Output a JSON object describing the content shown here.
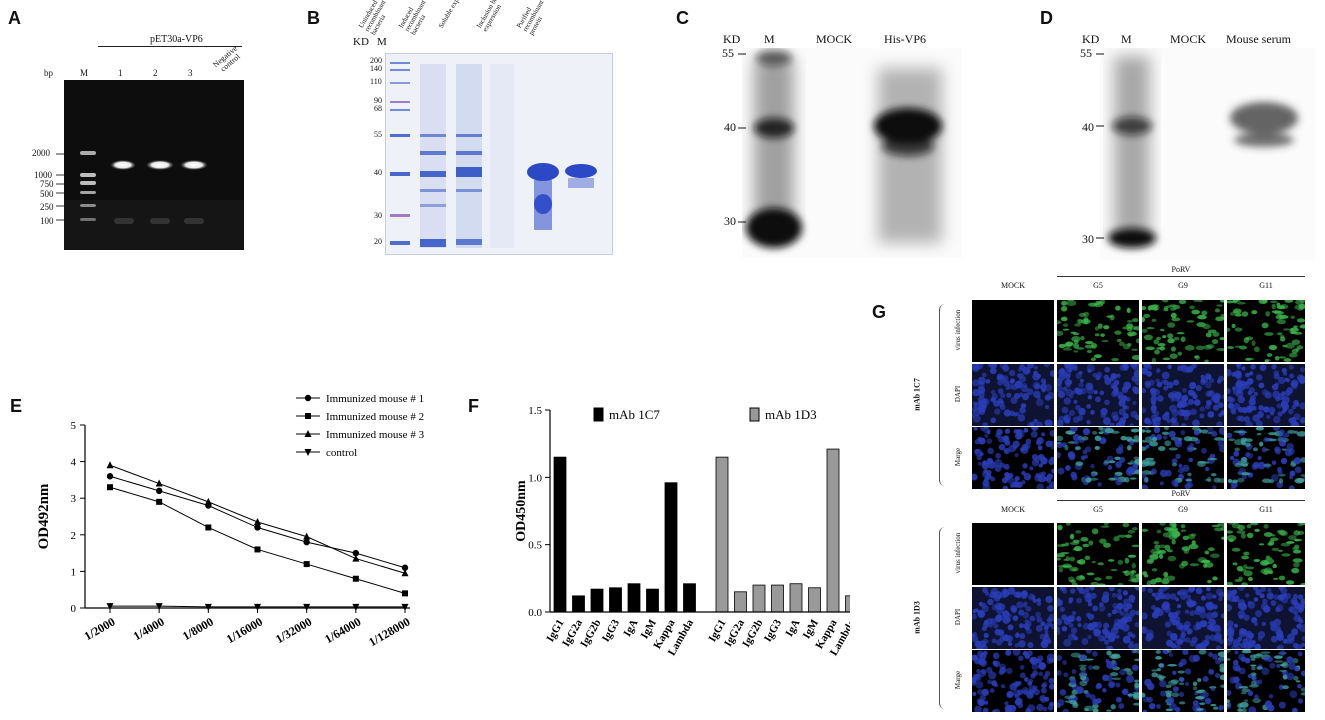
{
  "panels": {
    "A": "A",
    "B": "B",
    "C": "C",
    "D": "D",
    "E": "E",
    "F": "F",
    "G": "G"
  },
  "panelA": {
    "header": "pET30a-VP6",
    "unit": "bp",
    "lanes": [
      "M",
      "1",
      "2",
      "3",
      "Negative control"
    ],
    "markers": [
      "2000",
      "1000",
      "750",
      "500",
      "250",
      "100"
    ]
  },
  "panelB": {
    "unit": "KD",
    "marker_lane": "M",
    "lanes": [
      "Uninduced recombinant bacteria",
      "Induced recombinant bacteria",
      "Soluble expression",
      "Inclusion body expression",
      "Purified recombinant protein"
    ],
    "markers": [
      "200",
      "140",
      "110",
      "90",
      "68",
      "55",
      "40",
      "30",
      "20"
    ]
  },
  "panelC": {
    "unit": "KD",
    "lanes": [
      "M",
      "MOCK",
      "His-VP6"
    ],
    "markers": [
      "55",
      "40",
      "30"
    ]
  },
  "panelD": {
    "unit": "KD",
    "lanes": [
      "M",
      "MOCK",
      "Mouse serum"
    ],
    "markers": [
      "55",
      "40",
      "30"
    ]
  },
  "panelE": {
    "ylabel": "OD492nm",
    "legend": [
      "Immunized mouse # 1",
      "Immunized mouse # 2",
      "Immunized mouse # 3",
      "control"
    ]
  },
  "panelF": {
    "ylabel": "OD450nm",
    "legend": [
      "mAb 1C7",
      "mAb 1D3"
    ]
  },
  "panelG": {
    "group_header": "PoRV",
    "columns": [
      "MOCK",
      "G5",
      "G9",
      "G11"
    ],
    "rows": [
      "virus infection",
      "DAPI",
      "Marge"
    ],
    "antibodies": [
      "mAb 1C7",
      "mAb 1D3"
    ]
  },
  "colors": {
    "dapi": "#1a237e",
    "gfp": "#2e7d32",
    "coomassie": "#1f3fbf",
    "bar_1c7": "#000000",
    "bar_1d3": "#999999"
  },
  "chart_data": [
    {
      "type": "line",
      "title": "",
      "xlabel": "",
      "ylabel": "OD492nm",
      "categories": [
        "1/2000",
        "1/4000",
        "1/8000",
        "1/16000",
        "1/32000",
        "1/64000",
        "1/128000"
      ],
      "ylim": [
        0,
        5
      ],
      "yticks": [
        0,
        1,
        2,
        3,
        4,
        5
      ],
      "legend_position": "top-right",
      "series": [
        {
          "name": "Immunized mouse # 1",
          "marker": "circle",
          "values": [
            3.6,
            3.2,
            2.8,
            2.2,
            1.8,
            1.5,
            1.1
          ]
        },
        {
          "name": "Immunized mouse # 2",
          "marker": "square",
          "values": [
            3.3,
            2.9,
            2.2,
            1.6,
            1.2,
            0.8,
            0.4
          ]
        },
        {
          "name": "Immunized mouse # 3",
          "marker": "triangle",
          "values": [
            3.9,
            3.4,
            2.9,
            2.35,
            1.95,
            1.35,
            0.95
          ]
        },
        {
          "name": "control",
          "marker": "triangle-down",
          "values": [
            0.05,
            0.05,
            0.03,
            0.03,
            0.03,
            0.03,
            0.03
          ]
        }
      ]
    },
    {
      "type": "bar",
      "title": "",
      "xlabel": "",
      "ylabel": "OD450nm",
      "ylim": [
        0,
        1.5
      ],
      "yticks": [
        0,
        0.5,
        1.0,
        1.5
      ],
      "legend_position": "top",
      "series": [
        {
          "name": "mAb 1C7",
          "categories": [
            "IgG1",
            "IgG2a",
            "IgG2b",
            "IgG3",
            "IgA",
            "IgM",
            "Kappa",
            "Lambda"
          ],
          "values": [
            1.15,
            0.12,
            0.17,
            0.18,
            0.21,
            0.17,
            0.96,
            0.21
          ]
        },
        {
          "name": "mAb 1D3",
          "categories": [
            "IgG1",
            "IgG2a",
            "IgG2b",
            "IgG3",
            "IgA",
            "IgM",
            "Kappa",
            "Lambda"
          ],
          "values": [
            1.15,
            0.15,
            0.2,
            0.2,
            0.21,
            0.18,
            1.21,
            0.12
          ]
        }
      ]
    }
  ]
}
